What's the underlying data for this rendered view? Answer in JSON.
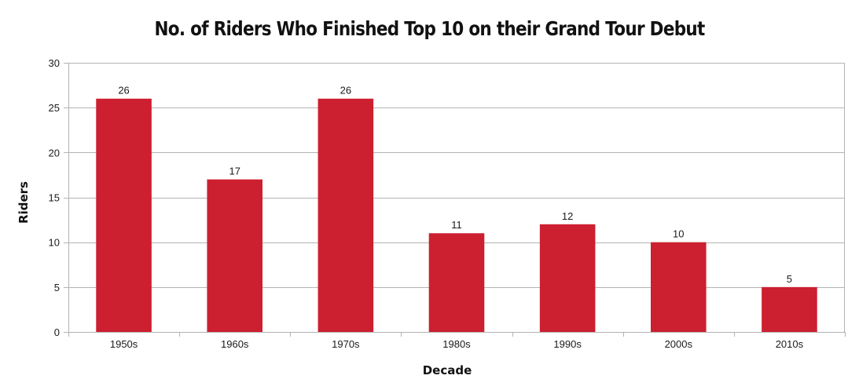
{
  "chart_data": {
    "type": "bar",
    "title": "No. of Riders Who Finished Top 10 on their Grand Tour Debut",
    "xlabel": "Decade",
    "ylabel": "Riders",
    "categories": [
      "1950s",
      "1960s",
      "1970s",
      "1980s",
      "1990s",
      "2000s",
      "2010s"
    ],
    "values": [
      26,
      17,
      26,
      11,
      12,
      10,
      5
    ],
    "ylim": [
      0,
      30
    ],
    "yticks": [
      0,
      5,
      10,
      15,
      20,
      25,
      30
    ],
    "grid": true,
    "data_labels": true,
    "bar_color": "#cc1f30",
    "legend": "none"
  }
}
